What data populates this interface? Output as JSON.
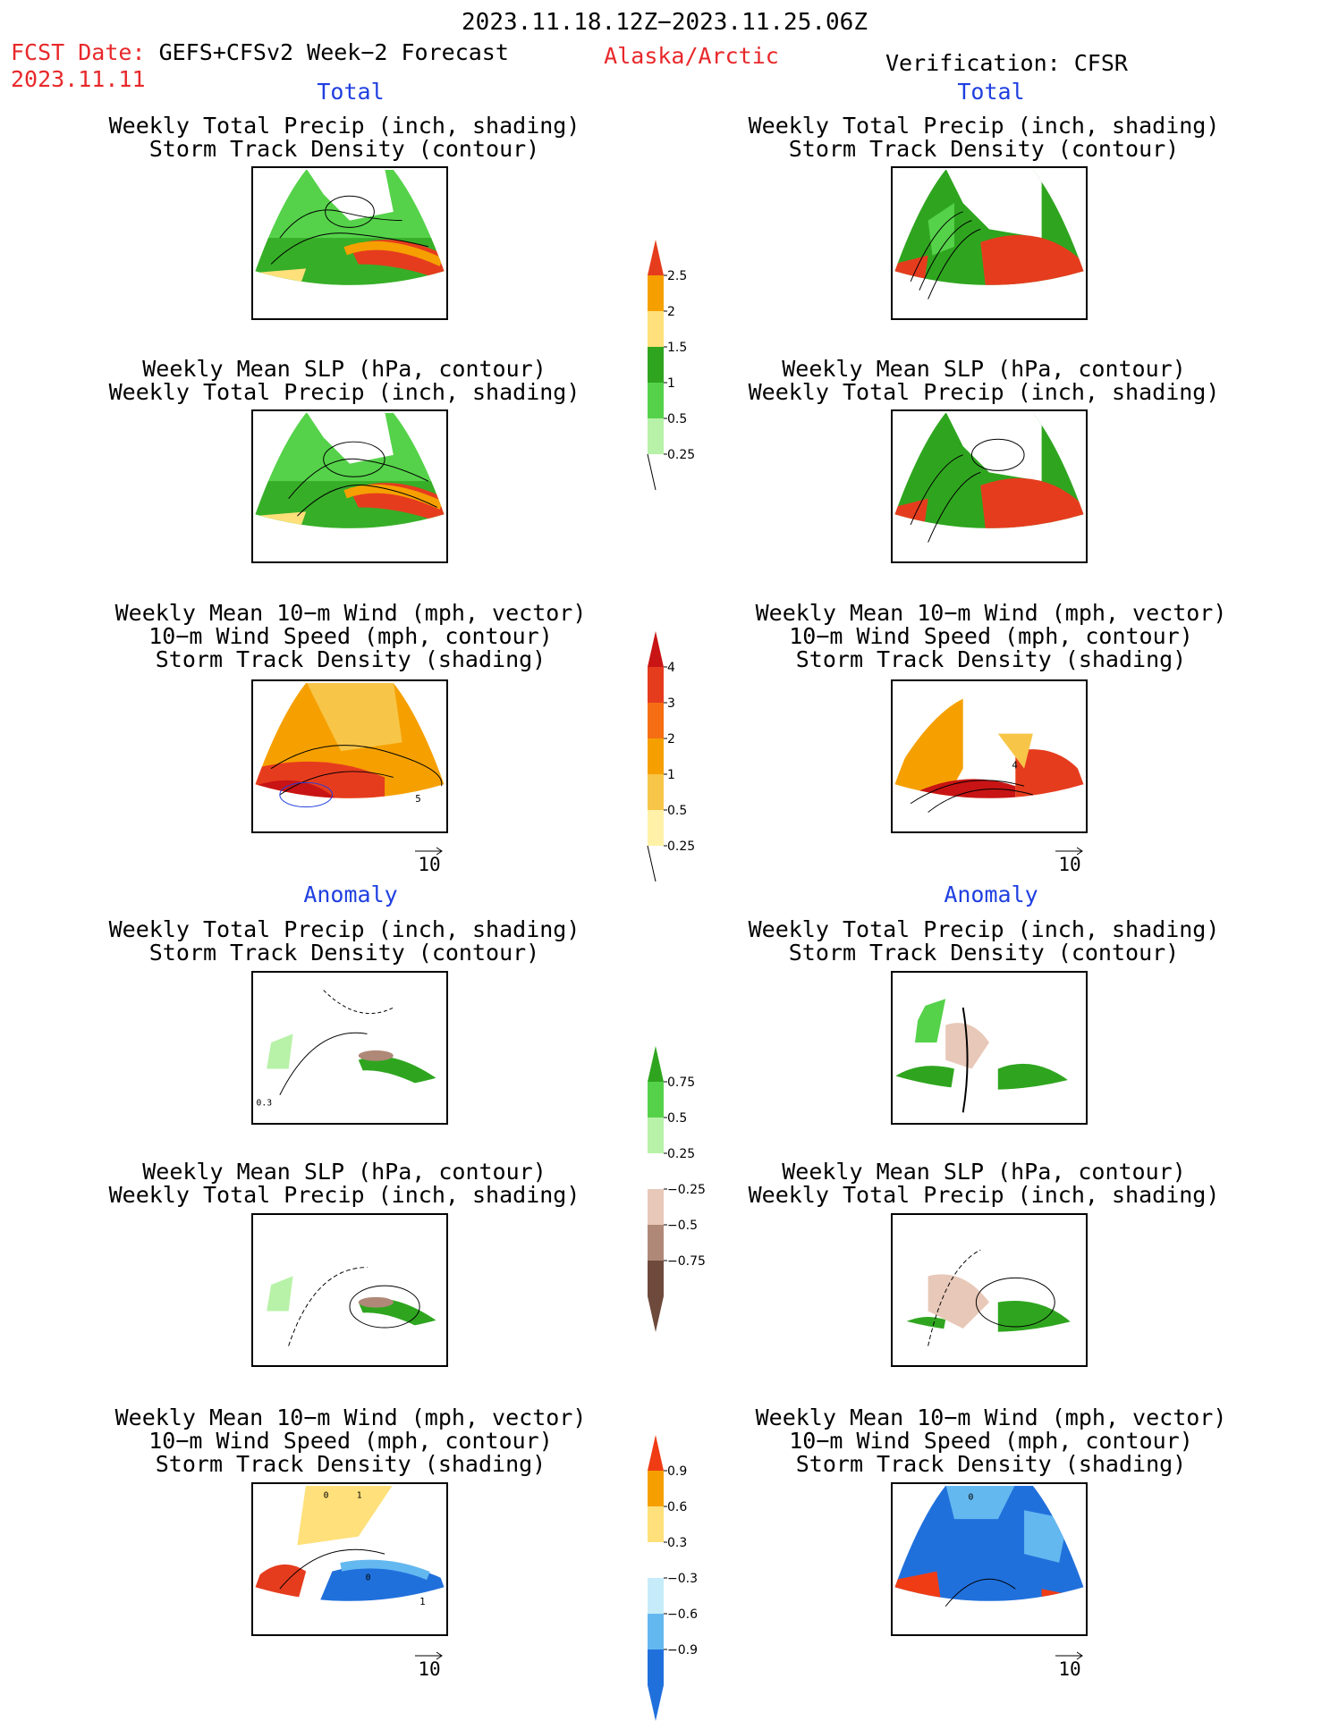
{
  "header": {
    "period": "2023.11.18.12Z−2023.11.25.06Z",
    "fcst_label": "FCST Date:",
    "fcst_model": "GEFS+CFSv2 Week−2 Forecast",
    "fcst_date": "2023.11.11",
    "region": "Alaska/Arctic",
    "verification": "Verification: CFSR"
  },
  "sections": {
    "total": "Total",
    "anomaly": "Anomaly"
  },
  "titles": {
    "precip_storm": [
      "Weekly Total Precip (inch, shading)",
      "Storm Track Density (contour)"
    ],
    "slp_precip": [
      "Weekly Mean SLP (hPa, contour)",
      "Weekly Total Precip (inch, shading)"
    ],
    "wind": [
      "Weekly Mean 10−m Wind (mph, vector)",
      "10−m Wind Speed (mph, contour)",
      "Storm Track Density (shading)"
    ]
  },
  "vector_ref": "10",
  "colorbars": {
    "precip_total": {
      "labels": [
        "2.5",
        "2",
        "1.5",
        "1",
        "0.5",
        "0.25"
      ],
      "colors": [
        "#e63c1e",
        "#f5a000",
        "#ffe07a",
        "#2fa51f",
        "#55d24a",
        "#b8f2a8"
      ]
    },
    "storm_total": {
      "labels": [
        "4",
        "3",
        "2",
        "1",
        "0.5",
        "0.25"
      ],
      "colors": [
        "#c81414",
        "#e63c1e",
        "#f56e14",
        "#f5a000",
        "#f7c548",
        "#fff2a8"
      ]
    },
    "precip_anom": {
      "labels": [
        "0.75",
        "0.5",
        "0.25",
        "−0.25",
        "−0.5",
        "−0.75"
      ],
      "colors": [
        "#2fa51f",
        "#55d24a",
        "#b8f2a8",
        "#ffffff",
        "#e8c8b8",
        "#b08878",
        "#6e4a3c"
      ]
    },
    "storm_anom": {
      "labels": [
        "0.9",
        "0.6",
        "0.3",
        "−0.3",
        "−0.6",
        "−0.9"
      ],
      "colors": [
        "#f03c14",
        "#f5a000",
        "#ffe07a",
        "#ffffff",
        "#c6ecfa",
        "#64b8f0",
        "#2070dc"
      ]
    }
  },
  "map_annotations": {
    "anom_precip_left": "0.3",
    "anom_wind_left_a": "0",
    "anom_wind_left_b": "1",
    "anom_wind_left_c": "0",
    "anom_wind_left_d": "1",
    "anom_wind_right_a": "0",
    "total_wind_left": "5",
    "total_wind_right": "4"
  }
}
